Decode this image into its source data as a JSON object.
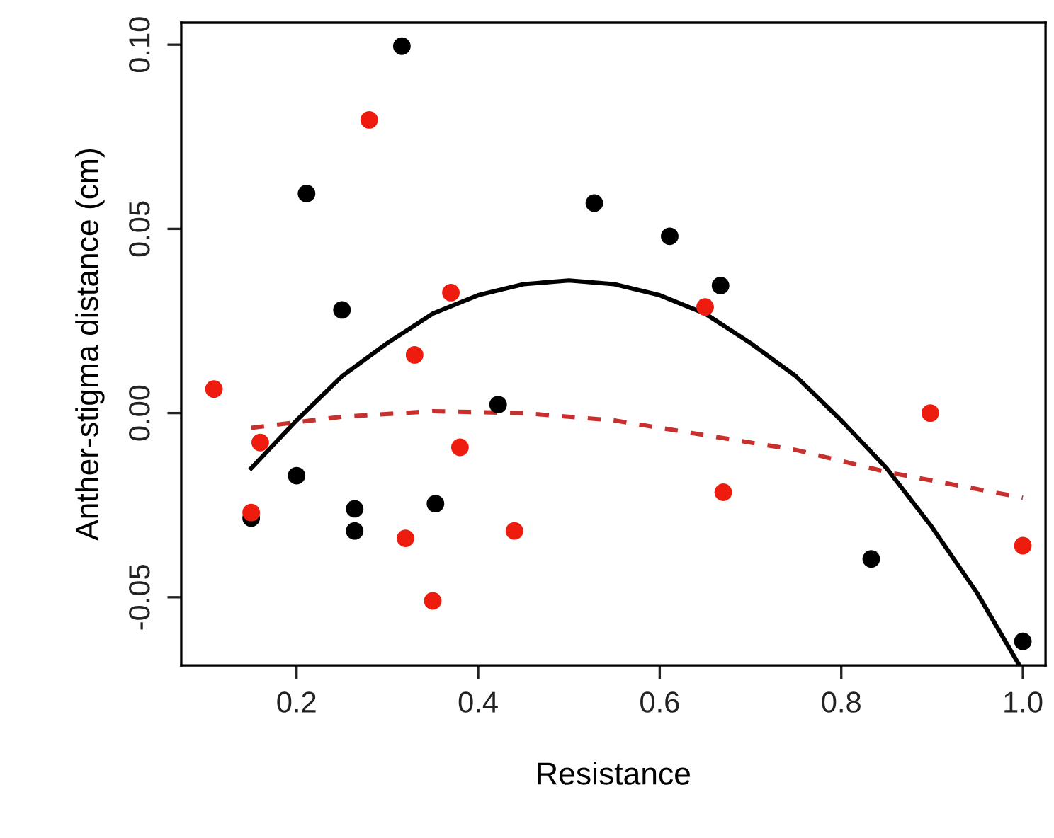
{
  "chart_data": {
    "type": "scatter",
    "xlabel": "Resistance",
    "ylabel": "Anther-stigma distance (cm)",
    "xlim": [
      0.073,
      1.025
    ],
    "ylim": [
      -0.0685,
      0.106
    ],
    "xticks": [
      {
        "value": 0.2,
        "label": "0.2"
      },
      {
        "value": 0.4,
        "label": "0.4"
      },
      {
        "value": 0.6,
        "label": "0.6"
      },
      {
        "value": 0.8,
        "label": "0.8"
      },
      {
        "value": 1.0,
        "label": "1.0"
      }
    ],
    "yticks": [
      {
        "value": -0.05,
        "label": "-0.05"
      },
      {
        "value": 0.0,
        "label": "0.00"
      },
      {
        "value": 0.05,
        "label": "0.05"
      },
      {
        "value": 0.1,
        "label": "0.10"
      }
    ],
    "grid": false,
    "marker": "circle",
    "series": [
      {
        "color": "#000000",
        "x": [
          0.316,
          0.211,
          0.25,
          0.528,
          0.611,
          0.667,
          0.833,
          1.0,
          0.422,
          0.2,
          0.264,
          0.264,
          0.353,
          0.15
        ],
        "values": [
          0.0996,
          0.0596,
          0.028,
          0.057,
          0.048,
          0.0346,
          -0.0396,
          -0.062,
          0.0023,
          -0.017,
          -0.026,
          -0.032,
          -0.0246,
          -0.0285
        ]
      },
      {
        "color": "#ee1c0e",
        "x": [
          0.28,
          0.37,
          0.33,
          0.109,
          0.16,
          0.38,
          0.15,
          0.32,
          0.44,
          0.35,
          0.65,
          0.67,
          0.898,
          1.0
        ],
        "values": [
          0.0796,
          0.0327,
          0.0158,
          0.0065,
          -0.008,
          -0.0093,
          -0.027,
          -0.034,
          -0.032,
          -0.051,
          0.0288,
          -0.0215,
          0.0,
          -0.036
        ]
      },
      {
        "type": "line",
        "marker": "none",
        "color": "#000000",
        "line_style": "solid",
        "x": [
          0.15,
          0.2,
          0.25,
          0.3,
          0.35,
          0.4,
          0.45,
          0.5,
          0.55,
          0.6,
          0.65,
          0.7,
          0.75,
          0.8,
          0.85,
          0.9,
          0.95,
          0.995
        ],
        "values": [
          -0.015,
          -0.002,
          0.01,
          0.019,
          0.027,
          0.032,
          0.035,
          0.036,
          0.035,
          0.032,
          0.027,
          0.019,
          0.01,
          -0.002,
          -0.015,
          -0.031,
          -0.049,
          -0.068
        ]
      },
      {
        "type": "line",
        "marker": "none",
        "color": "#c8302e",
        "line_style": "dashed",
        "x": [
          0.15,
          0.25,
          0.35,
          0.45,
          0.55,
          0.65,
          0.75,
          0.85,
          1.0
        ],
        "values": [
          -0.004,
          -0.001,
          0.0005,
          0.0,
          -0.002,
          -0.006,
          -0.01,
          -0.016,
          -0.023
        ]
      }
    ]
  }
}
